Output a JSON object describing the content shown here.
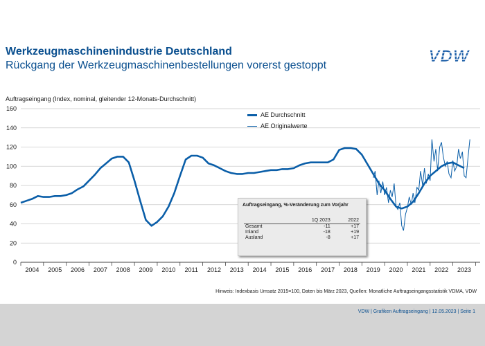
{
  "header": {
    "title": "Werkzeugmaschinenindustrie Deutschland",
    "subtitle": "Rückgang der Werkzeugmaschinenbestellungen vorerst gestoppt",
    "logo_text": "VDW"
  },
  "colors": {
    "brand": "#0a4f8f",
    "series": "#0a5ea8",
    "grid": "#c9c9c9",
    "footer_band": "#d4d4d4"
  },
  "chart_data": {
    "type": "line",
    "ylabel": "Auftragseingang (Index, nominal, gleitender 12-Monats-Durchschnitt)",
    "ylim": [
      0,
      160
    ],
    "yticks": [
      0,
      20,
      40,
      60,
      80,
      100,
      120,
      140,
      160
    ],
    "xlim": [
      2003.5,
      2023.7
    ],
    "categories": [
      "2004",
      "2005",
      "2006",
      "2007",
      "2008",
      "2009",
      "2010",
      "2011",
      "2012",
      "2013",
      "2014",
      "2015",
      "2016",
      "2017",
      "2018",
      "2019",
      "2020",
      "2021",
      "2022",
      "2023"
    ],
    "grid": true,
    "legend": "top-center",
    "series": [
      {
        "name": "AE Durchschnitt",
        "x": [
          2003.5,
          2003.75,
          2004.0,
          2004.25,
          2004.5,
          2004.75,
          2005.0,
          2005.25,
          2005.5,
          2005.75,
          2006.0,
          2006.25,
          2006.5,
          2006.75,
          2007.0,
          2007.25,
          2007.5,
          2007.75,
          2008.0,
          2008.25,
          2008.5,
          2008.75,
          2009.0,
          2009.25,
          2009.5,
          2009.75,
          2010.0,
          2010.25,
          2010.5,
          2010.75,
          2011.0,
          2011.25,
          2011.5,
          2011.75,
          2012.0,
          2012.25,
          2012.5,
          2012.75,
          2013.0,
          2013.25,
          2013.5,
          2013.75,
          2014.0,
          2014.25,
          2014.5,
          2014.75,
          2015.0,
          2015.25,
          2015.5,
          2015.75,
          2016.0,
          2016.25,
          2016.5,
          2016.75,
          2017.0,
          2017.25,
          2017.5,
          2017.75,
          2018.0,
          2018.25,
          2018.5,
          2018.75,
          2019.0,
          2019.25,
          2019.5,
          2019.75,
          2020.0,
          2020.25,
          2020.5,
          2020.75,
          2021.0,
          2021.25,
          2021.5,
          2021.75,
          2022.0,
          2022.25,
          2022.5,
          2022.75,
          2023.0
        ],
        "values": [
          62,
          64,
          66,
          69,
          68,
          68,
          69,
          69,
          70,
          72,
          76,
          79,
          85,
          91,
          98,
          103,
          108,
          110,
          110,
          104,
          85,
          64,
          44,
          38,
          42,
          48,
          58,
          72,
          90,
          107,
          111,
          111,
          109,
          103,
          101,
          98,
          95,
          93,
          92,
          92,
          93,
          93,
          94,
          95,
          96,
          96,
          97,
          97,
          98,
          101,
          103,
          104,
          104,
          104,
          104,
          107,
          117,
          119,
          119,
          118,
          112,
          102,
          92,
          82,
          75,
          66,
          58,
          56,
          58,
          63,
          72,
          82,
          90,
          95,
          100,
          103,
          104,
          101,
          98
        ]
      },
      {
        "name": "AE Originalwerte",
        "x": [
          2019.0,
          2019.08,
          2019.17,
          2019.25,
          2019.33,
          2019.42,
          2019.5,
          2019.58,
          2019.67,
          2019.75,
          2019.83,
          2019.92,
          2020.0,
          2020.08,
          2020.17,
          2020.25,
          2020.33,
          2020.42,
          2020.5,
          2020.58,
          2020.67,
          2020.75,
          2020.83,
          2020.92,
          2021.0,
          2021.08,
          2021.17,
          2021.25,
          2021.33,
          2021.42,
          2021.5,
          2021.58,
          2021.67,
          2021.75,
          2021.83,
          2021.92,
          2022.0,
          2022.08,
          2022.17,
          2022.25,
          2022.33,
          2022.42,
          2022.5,
          2022.58,
          2022.67,
          2022.75,
          2022.83,
          2022.92,
          2023.0,
          2023.08,
          2023.17,
          2023.25
        ],
        "values": [
          88,
          95,
          70,
          85,
          72,
          84,
          70,
          78,
          62,
          75,
          68,
          82,
          58,
          55,
          62,
          38,
          33,
          50,
          57,
          68,
          60,
          72,
          62,
          78,
          75,
          95,
          80,
          98,
          82,
          92,
          85,
          128,
          105,
          118,
          95,
          120,
          125,
          110,
          100,
          105,
          92,
          88,
          106,
          95,
          100,
          118,
          108,
          115,
          90,
          88,
          110,
          128
        ]
      }
    ],
    "inset_table": {
      "title": "Auftragseingang, %-Veränderung zum Vorjahr",
      "columns": [
        "",
        "1Q 2023",
        "2022"
      ],
      "rows": [
        [
          "Gesamt",
          "-11",
          "+17"
        ],
        [
          "Inland",
          "-18",
          "+19"
        ],
        [
          "Ausland",
          "-8",
          "+17"
        ]
      ]
    }
  },
  "note": "Hinweis: Indexbasis Umsatz 2015=100, Daten bis März 2023, Quellen: Monatliche Auftragseingangsstatistik VDMA, VDW",
  "footer": "VDW  |  Grafiken Auftragseingang  |  12.05.2023  |  Seite  1"
}
